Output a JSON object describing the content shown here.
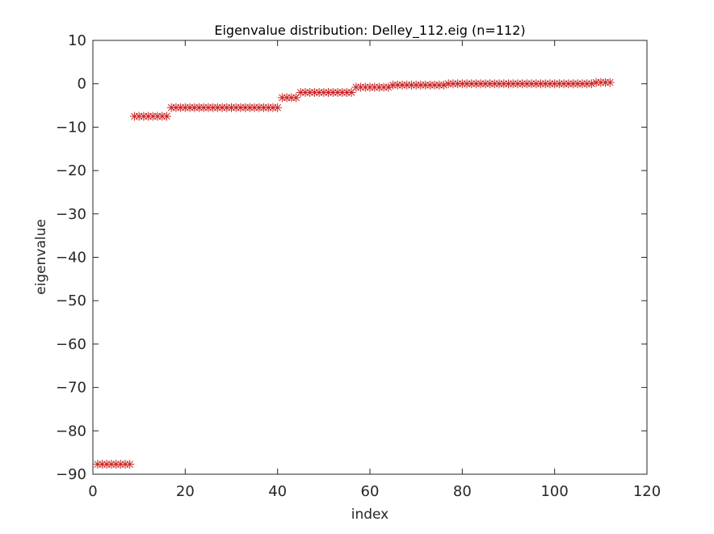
{
  "chart_data": {
    "type": "scatter",
    "title": "Eigenvalue distribution: Delley_112.eig (n=112)",
    "xlabel": "index",
    "ylabel": "eigenvalue",
    "xlim": [
      0,
      120
    ],
    "ylim": [
      -90,
      10
    ],
    "xticks": [
      0,
      20,
      40,
      60,
      80,
      100,
      120
    ],
    "yticks": [
      10,
      0,
      -10,
      -20,
      -30,
      -40,
      -50,
      -60,
      -70,
      -80,
      -90
    ],
    "xtick_labels": [
      "0",
      "20",
      "40",
      "60",
      "80",
      "100",
      "120"
    ],
    "ytick_labels": [
      "10",
      "0",
      "−10",
      "−20",
      "−30",
      "−40",
      "−50",
      "−60",
      "−70",
      "−80",
      "−90"
    ],
    "marker": "asterisk",
    "marker_color": "#cc2222",
    "grid": false,
    "series": [
      {
        "name": "eigenvalues",
        "groups": [
          {
            "start": 1,
            "end": 8,
            "value": -87.7
          },
          {
            "start": 9,
            "end": 16,
            "value": -7.5
          },
          {
            "start": 17,
            "end": 40,
            "value": -5.5
          },
          {
            "start": 41,
            "end": 44,
            "value": -3.2
          },
          {
            "start": 45,
            "end": 56,
            "value": -2.0
          },
          {
            "start": 57,
            "end": 64,
            "value": -0.8
          },
          {
            "start": 65,
            "end": 76,
            "value": -0.3
          },
          {
            "start": 77,
            "end": 108,
            "value": 0.0
          },
          {
            "start": 109,
            "end": 112,
            "value": 0.3
          }
        ]
      }
    ]
  }
}
